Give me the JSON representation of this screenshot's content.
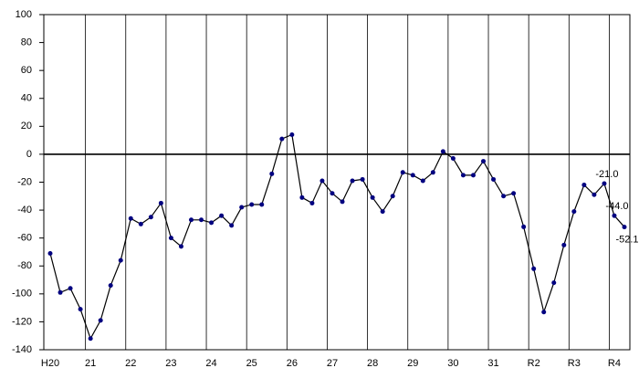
{
  "chart_data": {
    "type": "line",
    "categories": [
      "H20",
      null,
      null,
      null,
      "21",
      null,
      null,
      null,
      "22",
      null,
      null,
      null,
      "23",
      null,
      null,
      null,
      "24",
      null,
      null,
      null,
      "25",
      null,
      null,
      null,
      "26",
      null,
      null,
      null,
      "27",
      null,
      null,
      null,
      "28",
      null,
      null,
      null,
      "29",
      null,
      null,
      null,
      "30",
      null,
      null,
      null,
      "31",
      null,
      null,
      null,
      "R2",
      null,
      null,
      null,
      "R3",
      null,
      null,
      null,
      "R4",
      null
    ],
    "values": [
      -71,
      -99,
      -96,
      -111,
      -132,
      -119,
      -94,
      -76,
      -46,
      -50,
      -45,
      -35,
      -60,
      -66,
      -47,
      -47,
      -49,
      -44,
      -51,
      -38,
      -36,
      -36,
      -14,
      11,
      14,
      -31,
      -35,
      -19,
      -28,
      -34,
      -19,
      -18,
      -31,
      -41,
      -30,
      -13,
      -15,
      -19,
      -13,
      2,
      -3,
      -15,
      -15,
      -5,
      -18,
      -30,
      -28,
      -52,
      -82,
      -113,
      -92,
      -65,
      -41,
      -22,
      -29,
      -21.0,
      -44.0,
      -52.1
    ],
    "value_labels": [
      null,
      null,
      null,
      null,
      null,
      null,
      null,
      null,
      null,
      null,
      null,
      null,
      null,
      null,
      null,
      null,
      null,
      null,
      null,
      null,
      null,
      null,
      null,
      null,
      null,
      null,
      null,
      null,
      null,
      null,
      null,
      null,
      null,
      null,
      null,
      null,
      null,
      null,
      null,
      null,
      null,
      null,
      null,
      null,
      null,
      null,
      null,
      null,
      null,
      null,
      null,
      null,
      null,
      null,
      null,
      "-21.0",
      "-44.0",
      "-52.1"
    ],
    "color": "#000080",
    "ylim": [
      -140,
      100
    ],
    "yticks": [
      -140,
      -120,
      -100,
      -80,
      -60,
      -40,
      -20,
      0,
      20,
      40,
      60,
      80,
      100
    ]
  }
}
